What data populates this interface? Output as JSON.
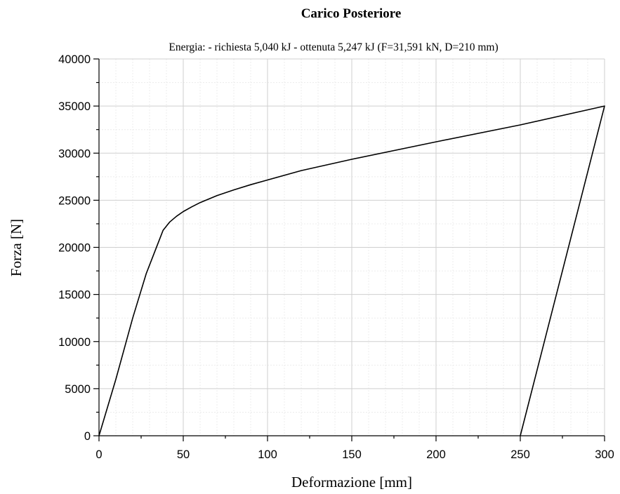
{
  "chart_data": {
    "type": "line",
    "title": "Carico Posteriore",
    "subtitle": "Energia: - richiesta 5,040 kJ - ottenuta 5,247 kJ (F=31,591 kN, D=210 mm)",
    "xlabel": "Deformazione [mm]",
    "ylabel": "Forza [N]",
    "xlim": [
      0,
      300
    ],
    "ylim": [
      0,
      40000
    ],
    "x_ticks": [
      "0",
      "50",
      "100",
      "150",
      "200",
      "250",
      "300"
    ],
    "y_ticks": [
      "0",
      "5000",
      "10000",
      "15000",
      "20000",
      "25000",
      "30000",
      "35000",
      "40000"
    ],
    "grid": true,
    "series": [
      {
        "x": [
          0,
          10,
          20,
          28,
          33,
          38,
          42,
          46,
          50,
          55,
          60,
          70,
          80,
          90,
          100,
          120,
          150,
          200,
          250,
          300,
          250
        ],
        "y": [
          0,
          6000,
          12500,
          17200,
          19500,
          21800,
          22700,
          23300,
          23800,
          24300,
          24750,
          25500,
          26100,
          26650,
          27150,
          28150,
          29350,
          31200,
          33000,
          35000,
          0
        ]
      }
    ]
  }
}
